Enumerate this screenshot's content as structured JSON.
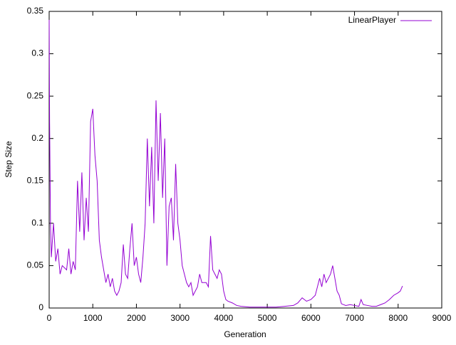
{
  "chart_data": {
    "type": "line",
    "x_label": "Generation",
    "y_label": "Step Size",
    "x": [
      0,
      10,
      30,
      50,
      100,
      150,
      200,
      250,
      300,
      400,
      450,
      500,
      550,
      600,
      650,
      700,
      750,
      800,
      850,
      900,
      950,
      1000,
      1050,
      1100,
      1150,
      1200,
      1250,
      1300,
      1350,
      1400,
      1450,
      1500,
      1550,
      1600,
      1650,
      1700,
      1750,
      1800,
      1850,
      1900,
      1950,
      2000,
      2050,
      2100,
      2150,
      2200,
      2250,
      2300,
      2350,
      2400,
      2450,
      2500,
      2550,
      2600,
      2650,
      2700,
      2750,
      2800,
      2850,
      2900,
      2950,
      3000,
      3050,
      3100,
      3150,
      3200,
      3250,
      3300,
      3400,
      3450,
      3500,
      3600,
      3650,
      3700,
      3750,
      3800,
      3850,
      3900,
      3950,
      4000,
      4050,
      4100,
      4200,
      4300,
      4400,
      4600,
      4800,
      5000,
      5200,
      5400,
      5600,
      5700,
      5800,
      5900,
      6000,
      6100,
      6200,
      6250,
      6300,
      6350,
      6400,
      6450,
      6500,
      6550,
      6600,
      6650,
      6700,
      6800,
      6900,
      7000,
      7100,
      7150,
      7200,
      7300,
      7400,
      7500,
      7600,
      7700,
      7800,
      7900,
      8000,
      8050,
      8100
    ],
    "series": [
      {
        "name": "LinearPlayer",
        "color": "#9400d3",
        "values": [
          0.34,
          0.22,
          0.1,
          0.06,
          0.1,
          0.055,
          0.07,
          0.04,
          0.05,
          0.045,
          0.07,
          0.04,
          0.055,
          0.045,
          0.15,
          0.09,
          0.16,
          0.08,
          0.13,
          0.09,
          0.22,
          0.235,
          0.18,
          0.15,
          0.08,
          0.06,
          0.045,
          0.03,
          0.04,
          0.025,
          0.035,
          0.02,
          0.015,
          0.02,
          0.03,
          0.075,
          0.04,
          0.035,
          0.07,
          0.1,
          0.05,
          0.06,
          0.04,
          0.03,
          0.06,
          0.1,
          0.2,
          0.12,
          0.19,
          0.1,
          0.245,
          0.15,
          0.23,
          0.13,
          0.2,
          0.05,
          0.12,
          0.13,
          0.08,
          0.17,
          0.1,
          0.08,
          0.05,
          0.04,
          0.03,
          0.025,
          0.03,
          0.015,
          0.025,
          0.04,
          0.03,
          0.03,
          0.025,
          0.085,
          0.045,
          0.04,
          0.035,
          0.045,
          0.04,
          0.02,
          0.01,
          0.008,
          0.006,
          0.003,
          0.002,
          0.001,
          0.001,
          0.001,
          0.001,
          0.002,
          0.003,
          0.006,
          0.012,
          0.008,
          0.01,
          0.015,
          0.035,
          0.025,
          0.04,
          0.03,
          0.035,
          0.04,
          0.05,
          0.035,
          0.02,
          0.015,
          0.005,
          0.003,
          0.004,
          0.003,
          0.002,
          0.01,
          0.004,
          0.003,
          0.002,
          0.002,
          0.004,
          0.006,
          0.01,
          0.015,
          0.018,
          0.02,
          0.026
        ]
      }
    ],
    "xlim": [
      0,
      9000
    ],
    "xticks": [
      0,
      1000,
      2000,
      3000,
      4000,
      5000,
      6000,
      7000,
      8000,
      9000
    ],
    "ylim": [
      0,
      0.35
    ],
    "yticks": [
      0,
      0.05,
      0.1,
      0.15,
      0.2,
      0.25,
      0.3,
      0.35
    ],
    "grid": false,
    "legend": "top-right"
  }
}
